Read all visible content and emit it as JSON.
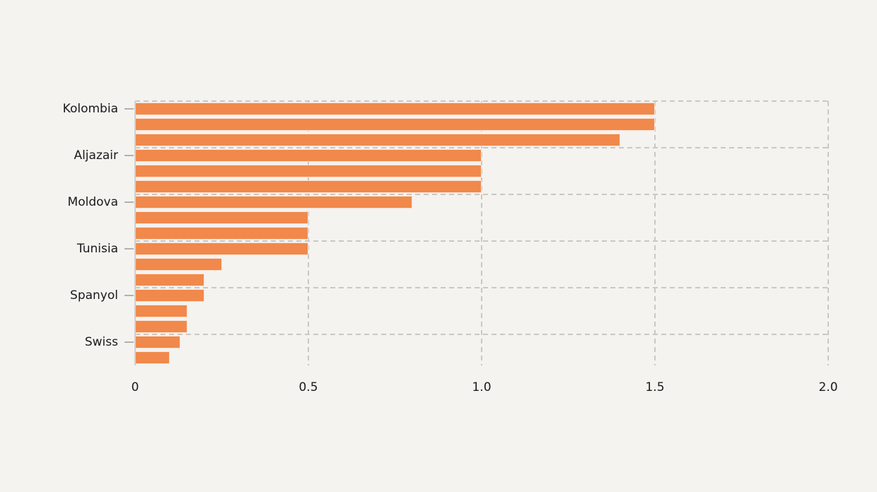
{
  "colors": {
    "background": "#f4f3f0",
    "bar": "#f0894b",
    "grid": "#c9c8c5",
    "spine": "#d2d0cc",
    "tick_mark": "#b3b1ae",
    "text": "#1a1a1a"
  },
  "chart_data": {
    "type": "bar",
    "orientation": "horizontal",
    "title": "",
    "xlabel": "",
    "ylabel": "",
    "grid": "dashed",
    "xlim": [
      0,
      2.0
    ],
    "x_ticks": [
      {
        "label": "0",
        "value": 0
      },
      {
        "label": "0.5",
        "value": 0.5
      },
      {
        "label": "1.0",
        "value": 1.0
      },
      {
        "label": "1.5",
        "value": 1.5
      },
      {
        "label": "2.0",
        "value": 2.0
      }
    ],
    "group_labels": [
      "Kolombia",
      "Aljazair",
      "Moldova",
      "Tunisia",
      "Spanyol",
      "Swiss"
    ],
    "label_bar_indices": [
      0,
      3,
      6,
      9,
      12,
      15
    ],
    "hgrid_row_indices": [
      0,
      3,
      6,
      9,
      12,
      15
    ],
    "values": [
      1.5,
      1.5,
      1.4,
      1.0,
      1.0,
      1.0,
      0.8,
      0.5,
      0.5,
      0.5,
      0.25,
      0.2,
      0.2,
      0.15,
      0.15,
      0.13,
      0.1
    ],
    "groups": [
      {
        "label": "Kolombia",
        "values": [
          1.5,
          1.5,
          1.4
        ]
      },
      {
        "label": "Aljazair",
        "values": [
          1.0,
          1.0,
          1.0
        ]
      },
      {
        "label": "Moldova",
        "values": [
          0.8,
          0.5,
          0.5
        ]
      },
      {
        "label": "Tunisia",
        "values": [
          0.5,
          0.25,
          0.2
        ]
      },
      {
        "label": "Spanyol",
        "values": [
          0.2,
          0.15,
          0.15
        ]
      },
      {
        "label": "Swiss",
        "values": [
          0.13,
          0.1
        ]
      }
    ]
  }
}
